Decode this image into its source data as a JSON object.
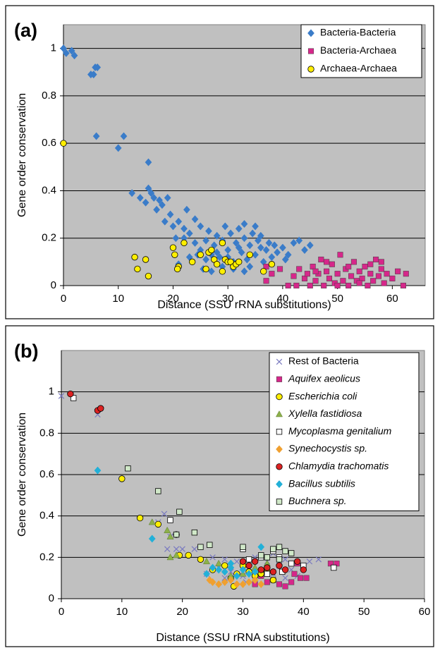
{
  "chart_data": [
    {
      "type": "scatter",
      "panel_label": "(a)",
      "x_label": "Distance (SSU rRNA substitutions)",
      "y_label": "Gene order conservation",
      "xlim": [
        0,
        66
      ],
      "ylim": [
        0,
        1.1
      ],
      "xticks": [
        0,
        10,
        20,
        30,
        40,
        50,
        60
      ],
      "yticks": [
        0,
        0.2,
        0.4,
        0.6,
        0.8,
        1
      ],
      "grid": true,
      "legend": "top-right",
      "series": [
        {
          "name": "Bacteria-Bacteria",
          "color": "#3a7cc9",
          "marker": "diamond",
          "italic": false,
          "x": [
            0,
            0.5,
            1.5,
            2,
            5,
            5.5,
            5.8,
            6.2,
            6,
            10,
            11,
            12.5,
            14,
            15,
            15.5,
            15.5,
            16,
            16.5,
            17,
            18,
            19,
            19.5,
            17.5,
            18.5,
            20,
            21,
            22,
            22.5,
            23,
            24,
            25,
            20.5,
            22,
            24,
            25,
            26,
            26.5,
            27,
            27.5,
            28,
            28.5,
            29,
            29.5,
            30,
            30.5,
            31,
            31.5,
            32,
            32.5,
            33,
            33.5,
            34,
            34.5,
            35,
            35.5,
            36,
            36.5,
            37,
            37.5,
            38,
            38.5,
            39,
            40,
            40.5,
            41,
            42,
            44,
            45,
            43,
            29,
            25.5,
            27,
            33,
            31,
            34,
            28,
            30,
            32,
            26,
            24.5,
            36,
            35,
            33,
            23,
            21
          ],
          "values": [
            1,
            0.98,
            0.99,
            0.97,
            0.89,
            0.89,
            0.92,
            0.92,
            0.63,
            0.58,
            0.63,
            0.39,
            0.37,
            0.35,
            0.52,
            0.41,
            0.39,
            0.37,
            0.32,
            0.34,
            0.37,
            0.3,
            0.36,
            0.27,
            0.25,
            0.27,
            0.24,
            0.32,
            0.22,
            0.28,
            0.25,
            0.2,
            0.2,
            0.18,
            0.15,
            0.19,
            0.23,
            0.13,
            0.17,
            0.21,
            0.12,
            0.19,
            0.25,
            0.15,
            0.22,
            0.1,
            0.18,
            0.24,
            0.14,
            0.2,
            0.11,
            0.17,
            0.22,
            0.13,
            0.19,
            0.16,
            0.1,
            0.15,
            0.18,
            0.12,
            0.17,
            0.14,
            0.16,
            0.11,
            0.13,
            0.18,
            0.15,
            0.17,
            0.19,
            0.08,
            0.07,
            0.06,
            0.06,
            0.07,
            0.08,
            0.14,
            0.12,
            0.16,
            0.11,
            0.13,
            0.21,
            0.25,
            0.26,
            0.12,
            0.09
          ]
        },
        {
          "name": "Bacteria-Archaea",
          "color": "#d6278a",
          "marker": "square",
          "italic": false,
          "x": [
            37,
            37,
            38,
            39.5,
            41,
            42.5,
            43,
            44,
            45,
            45.5,
            46,
            46.5,
            47,
            47.5,
            48,
            48.5,
            49,
            49.5,
            50,
            50.5,
            51,
            51.5,
            52,
            52.5,
            53,
            53.5,
            54,
            54.5,
            55,
            55.5,
            56,
            56.5,
            57,
            57.5,
            58,
            58.5,
            59,
            60,
            61,
            62,
            62.5,
            48,
            52,
            54,
            56,
            58,
            46,
            50,
            44.5,
            42
          ],
          "values": [
            0.08,
            0.02,
            0.05,
            0.07,
            0,
            0,
            0.07,
            0.03,
            0,
            0.08,
            0.02,
            0.05,
            0.11,
            0,
            0.06,
            0.03,
            0.09,
            0.01,
            0.05,
            0.13,
            0.02,
            0.07,
            0,
            0.04,
            0.1,
            0.02,
            0.06,
            0.03,
            0.08,
            0,
            0.05,
            0.02,
            0.11,
            0.04,
            0.07,
            0.01,
            0.05,
            0.03,
            0.06,
            0,
            0.05,
            0.1,
            0.08,
            0.01,
            0.09,
            0.1,
            0.06,
            0,
            0.05,
            0.04
          ]
        },
        {
          "name": "Archaea-Archaea",
          "color": "#ffee00",
          "marker": "circle",
          "italic": false,
          "x": [
            0,
            13,
            13.5,
            15,
            15.5,
            20,
            20.3,
            21,
            20.8,
            22,
            23.5,
            25,
            26,
            26.5,
            27,
            27.5,
            28,
            29,
            29.5,
            29,
            30,
            30.5,
            31,
            31.5,
            32,
            34,
            36.5,
            38
          ],
          "values": [
            0.6,
            0.12,
            0.07,
            0.11,
            0.04,
            0.16,
            0.13,
            0.08,
            0.07,
            0.18,
            0.1,
            0.13,
            0.07,
            0.14,
            0.15,
            0.11,
            0.09,
            0.18,
            0.11,
            0.06,
            0.1,
            0.1,
            0.08,
            0.09,
            0.1,
            0.13,
            0.06,
            0.09
          ]
        }
      ]
    },
    {
      "type": "scatter",
      "panel_label": "(b)",
      "x_label": "Distance (SSU rRNA substitutions)",
      "y_label": "Gene order conservation",
      "xlim": [
        0,
        60
      ],
      "ylim": [
        0,
        1.2
      ],
      "xticks": [
        0,
        10,
        20,
        30,
        40,
        50,
        60
      ],
      "yticks": [
        0,
        0.2,
        0.4,
        0.6,
        0.8,
        1
      ],
      "grid": true,
      "legend": "top-right",
      "series": [
        {
          "name": "Rest of Bacteria",
          "color": "#7a7ac0",
          "marker": "cross",
          "italic": false,
          "x": [
            0,
            6,
            17,
            16,
            18,
            20,
            19,
            17.5,
            22,
            25,
            26,
            27,
            28,
            29,
            30,
            31,
            32,
            33,
            34,
            35,
            36,
            37,
            38,
            39,
            40,
            41,
            42.5,
            30.5,
            27,
            24,
            35,
            37
          ],
          "values": [
            0.98,
            0.89,
            0.41,
            0.37,
            0.3,
            0.24,
            0.24,
            0.24,
            0.24,
            0.2,
            0.15,
            0.19,
            0.13,
            0.18,
            0.11,
            0.15,
            0.2,
            0.13,
            0.18,
            0.12,
            0.16,
            0.19,
            0.14,
            0.11,
            0.15,
            0.18,
            0.19,
            0.08,
            0.1,
            0.12,
            0.22,
            0.1
          ]
        },
        {
          "name": "Aquifex aeolicus",
          "color": "#d6278a",
          "marker": "square",
          "italic": true,
          "x": [
            33,
            34,
            35,
            36,
            37,
            38,
            38.5,
            39,
            39.5,
            40.5,
            44.5,
            45.5,
            32
          ],
          "values": [
            0.11,
            0.08,
            0.09,
            0.07,
            0.06,
            0.08,
            0.12,
            0.17,
            0.1,
            0.1,
            0.17,
            0.17,
            0.07
          ]
        },
        {
          "name": "Escherichia coli",
          "color": "#ffee00",
          "marker": "circle",
          "italic": true,
          "x": [
            10,
            13,
            16,
            19,
            19.5,
            21,
            23,
            25,
            27,
            28,
            29,
            28.5,
            30,
            31,
            32,
            33,
            34,
            35
          ],
          "values": [
            0.58,
            0.39,
            0.36,
            0.31,
            0.21,
            0.21,
            0.19,
            0.14,
            0.16,
            0.1,
            0.12,
            0.06,
            0.16,
            0.13,
            0.11,
            0.12,
            0.13,
            0.09
          ]
        },
        {
          "name": "Xylella fastidiosa",
          "color": "#8db04a",
          "marker": "triangle",
          "italic": true,
          "x": [
            15,
            17.5,
            18,
            18,
            19,
            24,
            26,
            28,
            30,
            32,
            34
          ],
          "values": [
            0.37,
            0.33,
            0.3,
            0.2,
            0.21,
            0.18,
            0.17,
            0.11,
            0.12,
            0.15,
            0.17
          ]
        },
        {
          "name": "Mycoplasma genitalium",
          "color": "#ffffff",
          "marker": "square",
          "italic": true,
          "x": [
            2,
            18,
            30,
            31,
            33,
            35,
            36,
            38,
            40,
            45,
            34,
            36.5
          ],
          "values": [
            0.97,
            0.38,
            0.24,
            0.19,
            0.2,
            0.23,
            0.2,
            0.17,
            0.16,
            0.15,
            0.12,
            0.13
          ]
        },
        {
          "name": "Synechocystis sp.",
          "color": "#f0a030",
          "marker": "diamond",
          "italic": true,
          "x": [
            25,
            26,
            27,
            28,
            29,
            30,
            31,
            32,
            33,
            24.5
          ],
          "values": [
            0.08,
            0.07,
            0.08,
            0.09,
            0.07,
            0.07,
            0.08,
            0.09,
            0.07,
            0.09
          ]
        },
        {
          "name": "Chlamydia trachomatis",
          "color": "#dd2222",
          "marker": "circle",
          "italic": true,
          "x": [
            1.5,
            6,
            6.5,
            30,
            31,
            32,
            33,
            34,
            35,
            36,
            37,
            39,
            40
          ],
          "values": [
            0.99,
            0.91,
            0.92,
            0.18,
            0.16,
            0.18,
            0.14,
            0.15,
            0.13,
            0.16,
            0.14,
            0.18,
            0.14
          ]
        },
        {
          "name": "Bacillus subtilis",
          "color": "#22b0d8",
          "marker": "diamond",
          "italic": true,
          "x": [
            6,
            15,
            24,
            25,
            26,
            27,
            28,
            29,
            30,
            31,
            32,
            33,
            28
          ],
          "values": [
            0.62,
            0.29,
            0.12,
            0.15,
            0.14,
            0.13,
            0.15,
            0.11,
            0.14,
            0.12,
            0.13,
            0.25,
            0.17
          ]
        },
        {
          "name": "Buchnera sp.",
          "color": "#d0e8c8",
          "marker": "square",
          "italic": true,
          "x": [
            11,
            16,
            19.5,
            19,
            22,
            23,
            24.5,
            30,
            33,
            35,
            36,
            37,
            36,
            34,
            38
          ],
          "values": [
            0.63,
            0.52,
            0.42,
            0.31,
            0.32,
            0.25,
            0.26,
            0.25,
            0.21,
            0.24,
            0.25,
            0.23,
            0.19,
            0.2,
            0.22
          ]
        }
      ]
    }
  ]
}
